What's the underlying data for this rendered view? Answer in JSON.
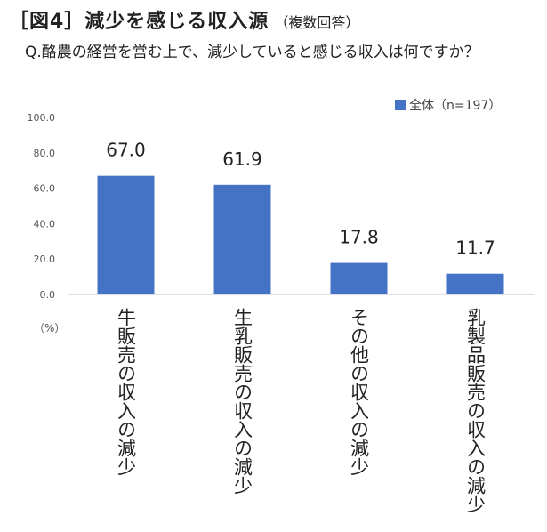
{
  "header": {
    "title": "［図4］減少を感じる収入源",
    "title_note": "（複数回答）",
    "question": "Q.酪農の経営を営む上で、減少していると感じる収入は何ですか？"
  },
  "legend": {
    "label": "全体（n=197）",
    "color": "#4472c4"
  },
  "unit_label": "（%）",
  "chart_data": {
    "type": "bar",
    "categories": [
      "牛販売の収入の減少",
      "生乳販売の収入の減少",
      "その他の収入の減少",
      "乳製品販売の収入の減少"
    ],
    "series": [
      {
        "name": "全体（n=197）",
        "values": [
          67.0,
          61.9,
          17.8,
          11.7
        ]
      }
    ],
    "ylim": [
      0,
      100
    ],
    "yticks": [
      "0.0",
      "20.0",
      "40.0",
      "60.0",
      "80.0",
      "100.0"
    ],
    "value_labels": [
      "67.0",
      "61.9",
      "17.8",
      "11.7"
    ],
    "bar_color": "#4472c4",
    "grid": false,
    "legend_position": "top-right"
  }
}
